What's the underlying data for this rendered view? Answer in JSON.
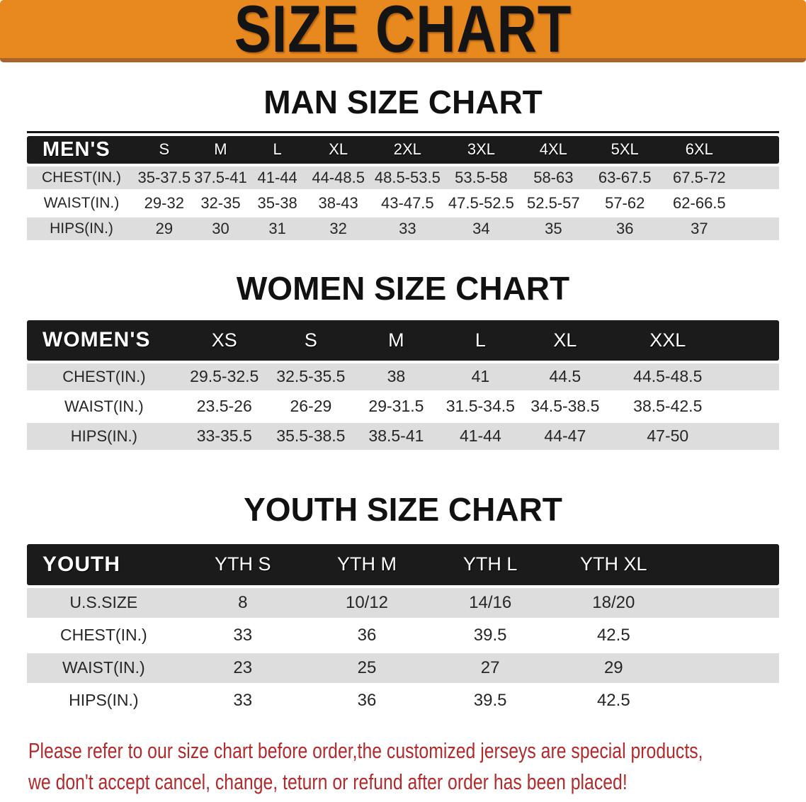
{
  "banner": {
    "title": "SIZE CHART"
  },
  "colors": {
    "banner_orange": "#E8891F",
    "banner_edge": "#A9652C",
    "header_bar_black": "#1B1B1B",
    "row_stripe_gray": "#DDDDDD",
    "row_stripe_white": "#FFFFFF",
    "note_red": "#B12A2C"
  },
  "chart_data": [
    {
      "type": "table",
      "key": "men",
      "title": "MAN SIZE CHART",
      "corner_label": "MEN'S",
      "columns": [
        "S",
        "M",
        "L",
        "XL",
        "2XL",
        "3XL",
        "4XL",
        "5XL",
        "6XL"
      ],
      "rows": [
        {
          "label": "CHEST(IN.)",
          "values": [
            "35-37.5",
            "37.5-41",
            "41-44",
            "44-48.5",
            "48.5-53.5",
            "53.5-58",
            "58-63",
            "63-67.5",
            "67.5-72"
          ]
        },
        {
          "label": "WAIST(IN.)",
          "values": [
            "29-32",
            "32-35",
            "35-38",
            "38-43",
            "43-47.5",
            "47.5-52.5",
            "52.5-57",
            "57-62",
            "62-66.5"
          ]
        },
        {
          "label": "HIPS(IN.)",
          "values": [
            "29",
            "30",
            "31",
            "32",
            "33",
            "34",
            "35",
            "36",
            "37"
          ]
        }
      ]
    },
    {
      "type": "table",
      "key": "women",
      "title": "WOMEN SIZE CHART",
      "corner_label": "WOMEN'S",
      "columns": [
        "XS",
        "S",
        "M",
        "L",
        "XL",
        "XXL"
      ],
      "rows": [
        {
          "label": "CHEST(IN.)",
          "values": [
            "29.5-32.5",
            "32.5-35.5",
            "38",
            "41",
            "44.5",
            "44.5-48.5"
          ]
        },
        {
          "label": "WAIST(IN.)",
          "values": [
            "23.5-26",
            "26-29",
            "29-31.5",
            "31.5-34.5",
            "34.5-38.5",
            "38.5-42.5"
          ]
        },
        {
          "label": "HIPS(IN.)",
          "values": [
            "33-35.5",
            "35.5-38.5",
            "38.5-41",
            "41-44",
            "44-47",
            "47-50"
          ]
        }
      ]
    },
    {
      "type": "table",
      "key": "youth",
      "title": "YOUTH SIZE CHART",
      "corner_label": "YOUTH",
      "columns": [
        "YTH S",
        "YTH M",
        "YTH L",
        "YTH XL"
      ],
      "rows": [
        {
          "label": "U.S.SIZE",
          "values": [
            "8",
            "10/12",
            "14/16",
            "18/20"
          ]
        },
        {
          "label": "CHEST(IN.)",
          "values": [
            "33",
            "36",
            "39.5",
            "42.5"
          ]
        },
        {
          "label": "WAIST(IN.)",
          "values": [
            "23",
            "25",
            "27",
            "29"
          ]
        },
        {
          "label": "HIPS(IN.)",
          "values": [
            "33",
            "36",
            "39.5",
            "42.5"
          ]
        }
      ]
    }
  ],
  "note": {
    "line1": "Please refer to our size chart before order,the customized jerseys are special products,",
    "line2": "we don't accept cancel, change, teturn or refund after order has been placed!"
  }
}
